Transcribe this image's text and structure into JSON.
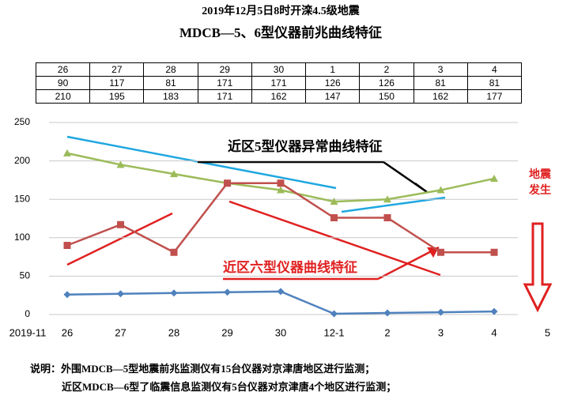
{
  "title_lines": [
    "2019年12月5日8时开滦4.5级地震",
    "MDCB—5、6型仪器前兆曲线特征"
  ],
  "table": {
    "rows": [
      [
        26,
        27,
        28,
        29,
        30,
        1,
        2,
        3,
        4
      ],
      [
        90,
        117,
        81,
        171,
        171,
        126,
        126,
        81,
        81
      ],
      [
        210,
        195,
        183,
        171,
        162,
        147,
        150,
        162,
        177
      ]
    ]
  },
  "chart_data": {
    "type": "line",
    "x_start_label": "2019-11",
    "categories": [
      "26",
      "27",
      "28",
      "29",
      "30",
      "12-1",
      "2",
      "3",
      "4",
      "5"
    ],
    "series": [
      {
        "color": "#9bbb59",
        "marker": "triangle",
        "values": [
          210,
          195,
          183,
          171,
          162,
          147,
          150,
          162,
          177,
          null
        ]
      },
      {
        "color": "#c0504d",
        "marker": "square",
        "values": [
          90,
          117,
          81,
          171,
          171,
          126,
          126,
          81,
          81,
          null
        ]
      },
      {
        "color": "#4f81bd",
        "marker": "diamond",
        "values": [
          26,
          27,
          28,
          29,
          30,
          1,
          2,
          3,
          4,
          null
        ]
      }
    ],
    "ylim": [
      0,
      250
    ],
    "yticks": [
      0,
      50,
      100,
      150,
      200,
      250
    ],
    "grid": true,
    "annotations": [
      "近区5型仪器异常曲线特征",
      "近区六型仪器曲线特征",
      "地震",
      "发生"
    ]
  },
  "notes": [
    "说明：外围MDCB—5型地震前兆监测仪有15台仪器对京津唐地区进行监测；",
    "近区MDCB—6型了临震信息监测仪有5台仪器对京津唐4个地区进行监测；"
  ]
}
